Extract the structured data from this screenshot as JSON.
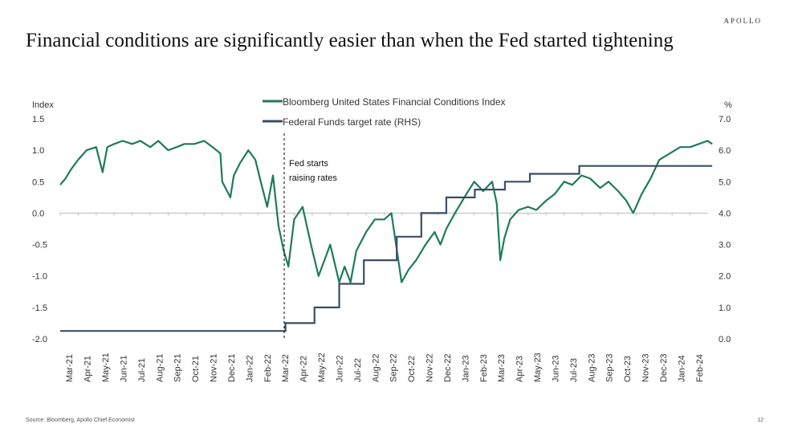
{
  "brand": "APOLLO",
  "title": "Financial conditions are significantly easier than when the Fed started tightening",
  "source": "Source: Bloomberg, Apollo Chief Economist",
  "page_number": "12",
  "colors": {
    "fci": "#1f7a5c",
    "ffr": "#3a4e66",
    "annotation": "#000000",
    "axis": "#bbbbbb"
  },
  "chart_data": {
    "type": "line",
    "xlabel": "",
    "ylabel": "Index",
    "ylabel_right": "%",
    "ylim": [
      -2.0,
      1.5
    ],
    "ylim_right": [
      0.0,
      7.0
    ],
    "yticks": [
      "1.5",
      "1.0",
      "0.5",
      "0.0",
      "-0.5",
      "-1.0",
      "-1.5",
      "-2.0"
    ],
    "yticks_right": [
      "7.0",
      "6.0",
      "5.0",
      "4.0",
      "3.0",
      "2.0",
      "1.0",
      "0.0"
    ],
    "x_labels": [
      "Mar-21",
      "Apr-21",
      "May-21",
      "Jun-21",
      "Jul-21",
      "Aug-21",
      "Sep-21",
      "Oct-21",
      "Nov-21",
      "Dec-21",
      "Jan-22",
      "Feb-22",
      "Mar-22",
      "Apr-22",
      "May-22",
      "Jun-22",
      "Jul-22",
      "Aug-22",
      "Sep-22",
      "Oct-22",
      "Nov-22",
      "Dec-22",
      "Jan-23",
      "Feb-23",
      "Mar-23",
      "Apr-23",
      "May-23",
      "Jun-23",
      "Jul-23",
      "Aug-23",
      "Sep-23",
      "Oct-23",
      "Nov-23",
      "Dec-23",
      "Jan-24",
      "Feb-24"
    ],
    "legend_position": "top-center",
    "grid": false,
    "annotation": {
      "text_lines": [
        "Fed starts",
        "raising rates"
      ],
      "x": "Mar-22"
    },
    "series": [
      {
        "name": "Bloomberg United States Financial Conditions Index",
        "axis": "left",
        "x": [
          "2021-03-01",
          "2021-03-10",
          "2021-03-20",
          "2021-04-01",
          "2021-04-15",
          "2021-05-01",
          "2021-05-12",
          "2021-05-20",
          "2021-06-01",
          "2021-06-15",
          "2021-07-01",
          "2021-07-15",
          "2021-08-01",
          "2021-08-15",
          "2021-09-01",
          "2021-09-15",
          "2021-09-28",
          "2021-10-15",
          "2021-11-01",
          "2021-11-15",
          "2021-11-28",
          "2021-12-01",
          "2021-12-15",
          "2021-12-21",
          "2022-01-01",
          "2022-01-15",
          "2022-01-27",
          "2022-02-05",
          "2022-02-15",
          "2022-02-24",
          "2022-03-05",
          "2022-03-14",
          "2022-03-22",
          "2022-04-01",
          "2022-04-15",
          "2022-04-29",
          "2022-05-12",
          "2022-05-20",
          "2022-06-01",
          "2022-06-16",
          "2022-06-25",
          "2022-07-05",
          "2022-07-15",
          "2022-08-01",
          "2022-08-16",
          "2022-09-01",
          "2022-09-13",
          "2022-09-30",
          "2022-10-12",
          "2022-10-25",
          "2022-11-10",
          "2022-11-25",
          "2022-12-05",
          "2022-12-15",
          "2022-12-30",
          "2023-01-15",
          "2023-02-01",
          "2023-02-15",
          "2023-03-01",
          "2023-03-09",
          "2023-03-15",
          "2023-03-22",
          "2023-04-01",
          "2023-04-15",
          "2023-05-01",
          "2023-05-15",
          "2023-06-01",
          "2023-06-15",
          "2023-07-01",
          "2023-07-15",
          "2023-07-31",
          "2023-08-15",
          "2023-09-01",
          "2023-09-15",
          "2023-10-01",
          "2023-10-15",
          "2023-10-27",
          "2023-11-10",
          "2023-11-25",
          "2023-12-10",
          "2023-12-28",
          "2024-01-15",
          "2024-02-01",
          "2024-02-15",
          "2024-02-29",
          "2024-03-08"
        ],
        "values": [
          0.45,
          0.55,
          0.7,
          0.85,
          1.0,
          1.05,
          0.65,
          1.05,
          1.1,
          1.15,
          1.1,
          1.15,
          1.05,
          1.15,
          1.0,
          1.05,
          1.1,
          1.1,
          1.15,
          1.05,
          0.95,
          0.5,
          0.25,
          0.6,
          0.8,
          1.0,
          0.85,
          0.5,
          0.1,
          0.6,
          -0.2,
          -0.6,
          -0.85,
          -0.1,
          0.1,
          -0.5,
          -1.0,
          -0.8,
          -0.5,
          -1.1,
          -0.85,
          -1.1,
          -0.6,
          -0.3,
          -0.1,
          -0.1,
          0.0,
          -1.1,
          -0.9,
          -0.75,
          -0.5,
          -0.3,
          -0.5,
          -0.25,
          0.0,
          0.25,
          0.5,
          0.35,
          0.5,
          0.15,
          -0.75,
          -0.4,
          -0.1,
          0.05,
          0.1,
          0.05,
          0.2,
          0.3,
          0.5,
          0.45,
          0.6,
          0.55,
          0.4,
          0.5,
          0.35,
          0.2,
          0.0,
          0.3,
          0.55,
          0.85,
          0.95,
          1.05,
          1.05,
          1.1,
          1.15,
          1.1
        ]
      },
      {
        "name": "Federal Funds target rate (RHS)",
        "axis": "right",
        "step": true,
        "x": [
          "2021-03-01",
          "2022-03-17",
          "2022-05-05",
          "2022-06-16",
          "2022-07-28",
          "2022-09-22",
          "2022-11-03",
          "2022-12-15",
          "2023-02-02",
          "2023-03-23",
          "2023-05-04",
          "2023-07-27",
          "2024-03-08"
        ],
        "values": [
          0.25,
          0.5,
          1.0,
          1.75,
          2.5,
          3.25,
          4.0,
          4.5,
          4.75,
          5.0,
          5.25,
          5.5,
          5.5
        ]
      }
    ]
  }
}
